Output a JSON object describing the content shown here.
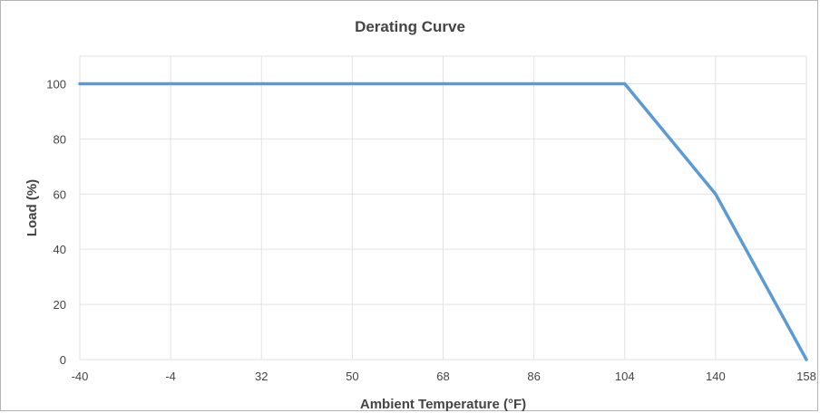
{
  "chart_data": {
    "type": "line",
    "title": "Derating Curve",
    "xlabel": "Ambient Temperature (°F)",
    "ylabel": "Load (%)",
    "x_categories": [
      "-40",
      "-4",
      "32",
      "50",
      "68",
      "86",
      "104",
      "140",
      "158"
    ],
    "y_ticks": [
      0,
      20,
      40,
      60,
      80,
      100
    ],
    "ylim": [
      0,
      110
    ],
    "grid": true,
    "series": [
      {
        "x": [
          "-40",
          "-4",
          "32",
          "50",
          "68",
          "86",
          "104",
          "140",
          "158"
        ],
        "values": [
          100,
          100,
          100,
          100,
          100,
          100,
          100,
          60,
          0
        ]
      }
    ],
    "colors": {
      "line": "#5b9bd5",
      "grid": "#e2e2e2",
      "text": "#444444"
    }
  }
}
